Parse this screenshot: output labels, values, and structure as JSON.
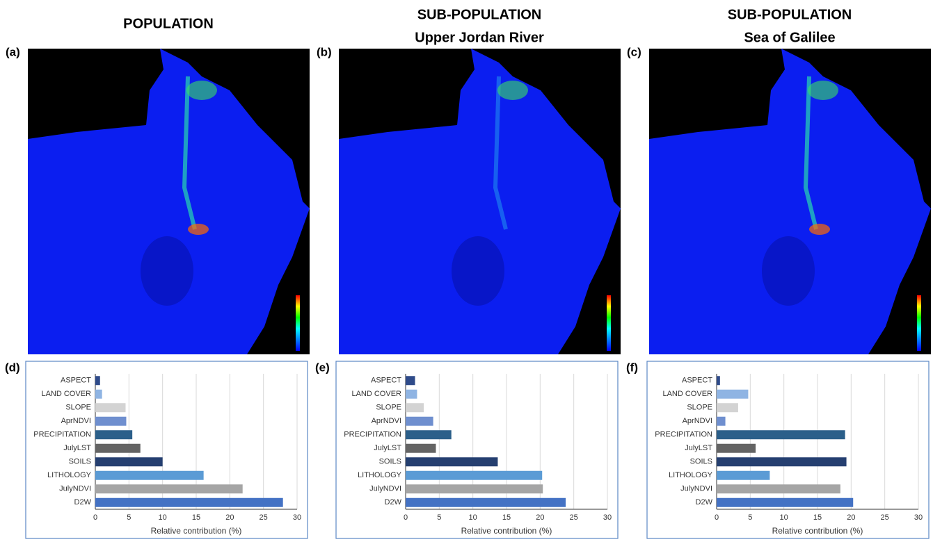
{
  "maps": [
    {
      "panel_label": "(a)",
      "title": [
        "POPULATION"
      ]
    },
    {
      "panel_label": "(b)",
      "title": [
        "SUB-POPULATION",
        "Upper Jordan River"
      ]
    },
    {
      "panel_label": "(c)",
      "title": [
        "SUB-POPULATION",
        "Sea of Galilee"
      ]
    }
  ],
  "chart_data": [
    {
      "type": "barh",
      "panel_label": "(d)",
      "xlabel": "Relative contribution (%)",
      "categories": [
        "ASPECT",
        "LAND COVER",
        "SLOPE",
        "AprNDVI",
        "PRECIPITATION",
        "JulyLST",
        "SOILS",
        "LITHOLOGY",
        "JulyNDVI",
        "D2W"
      ],
      "values": [
        0.7,
        1.0,
        4.5,
        4.6,
        5.5,
        6.7,
        10.0,
        16.1,
        21.9,
        27.9
      ],
      "colors": [
        "#2f4b8a",
        "#8fb4e3",
        "#d3d3d3",
        "#6f8fcf",
        "#2b5f8a",
        "#646464",
        "#253f70",
        "#5b9bd5",
        "#a5a5a5",
        "#4472c4"
      ],
      "xlim": [
        0,
        30
      ],
      "xticks": [
        0,
        5,
        10,
        15,
        20,
        25,
        30
      ],
      "grid": true
    },
    {
      "type": "barh",
      "panel_label": "(e)",
      "xlabel": "Relative contribution (%)",
      "categories": [
        "ASPECT",
        "LAND COVER",
        "SLOPE",
        "AprNDVI",
        "PRECIPITATION",
        "JulyLST",
        "SOILS",
        "LITHOLOGY",
        "JulyNDVI",
        "D2W"
      ],
      "values": [
        1.4,
        1.7,
        2.7,
        4.1,
        6.8,
        4.5,
        13.7,
        20.3,
        20.4,
        23.8
      ],
      "colors": [
        "#2f4b8a",
        "#8fb4e3",
        "#d3d3d3",
        "#6f8fcf",
        "#2b5f8a",
        "#646464",
        "#253f70",
        "#5b9bd5",
        "#a5a5a5",
        "#4472c4"
      ],
      "xlim": [
        0,
        30
      ],
      "xticks": [
        0,
        5,
        10,
        15,
        20,
        25,
        30
      ],
      "grid": true
    },
    {
      "type": "barh",
      "panel_label": "(f)",
      "xlabel": "Relative contribution (%)",
      "categories": [
        "ASPECT",
        "LAND COVER",
        "SLOPE",
        "AprNDVI",
        "PRECIPITATION",
        "JulyLST",
        "SOILS",
        "LITHOLOGY",
        "JulyNDVI",
        "D2W"
      ],
      "values": [
        0.5,
        4.7,
        3.2,
        1.3,
        19.1,
        5.8,
        19.3,
        7.9,
        18.4,
        20.3
      ],
      "colors": [
        "#2f4b8a",
        "#8fb4e3",
        "#d3d3d3",
        "#6f8fcf",
        "#2b5f8a",
        "#646464",
        "#253f70",
        "#5b9bd5",
        "#a5a5a5",
        "#4472c4"
      ],
      "xlim": [
        0,
        30
      ],
      "xticks": [
        0,
        5,
        10,
        15,
        20,
        25,
        30
      ],
      "grid": true
    }
  ]
}
